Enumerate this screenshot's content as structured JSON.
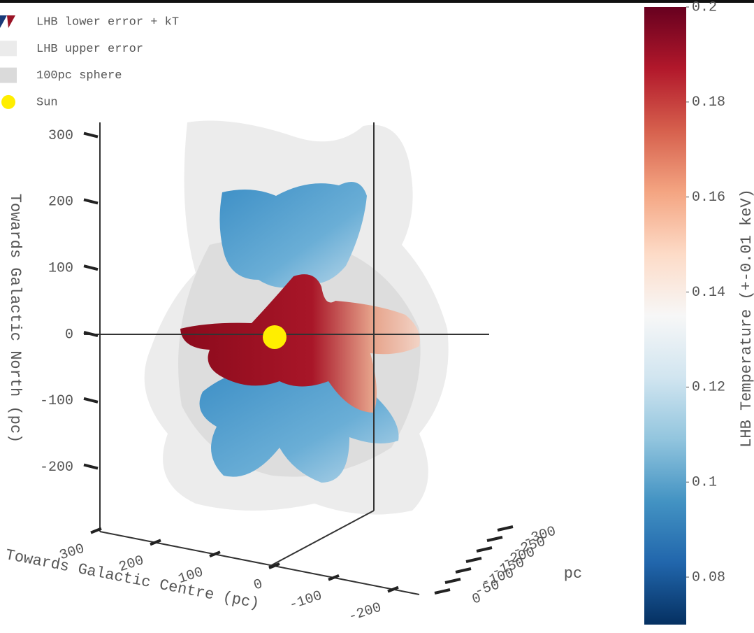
{
  "chart_data": {
    "type": "surface3d",
    "series": [
      {
        "name": "LHB lower error + kT"
      },
      {
        "name": "LHB upper error",
        "color": "#ebebeb"
      },
      {
        "name": "100pc sphere",
        "color": "#dadada"
      },
      {
        "name": "Sun",
        "color": "#ffee00",
        "x": [
          0
        ],
        "y": [
          0
        ],
        "z": [
          0
        ]
      }
    ],
    "zlabel": "Towards Galactic North (pc)",
    "zlim": [
      -300,
      300
    ],
    "zticks": [
      -200,
      -100,
      0,
      100,
      200,
      300
    ],
    "xlabel": "Towards Galactic Centre (pc)",
    "xticks": [
      -200,
      -100,
      0,
      100,
      200,
      300
    ],
    "ylabel": "pc",
    "yticks": [
      -300,
      -250,
      -200,
      -150,
      -100,
      -50,
      0
    ],
    "colorbar": {
      "title": "LHB Temperature (+-0.01 keV)",
      "lim": [
        0.07,
        0.2
      ],
      "ticks": [
        0.08,
        0.1,
        0.12,
        0.14,
        0.16,
        0.18,
        0.2
      ],
      "colorscale": [
        "#053061",
        "#2166ac",
        "#4393c3",
        "#92c5de",
        "#d1e5f0",
        "#f7f7f7",
        "#fddbc7",
        "#f4a582",
        "#d6604d",
        "#b2182b",
        "#67001f"
      ]
    }
  }
}
